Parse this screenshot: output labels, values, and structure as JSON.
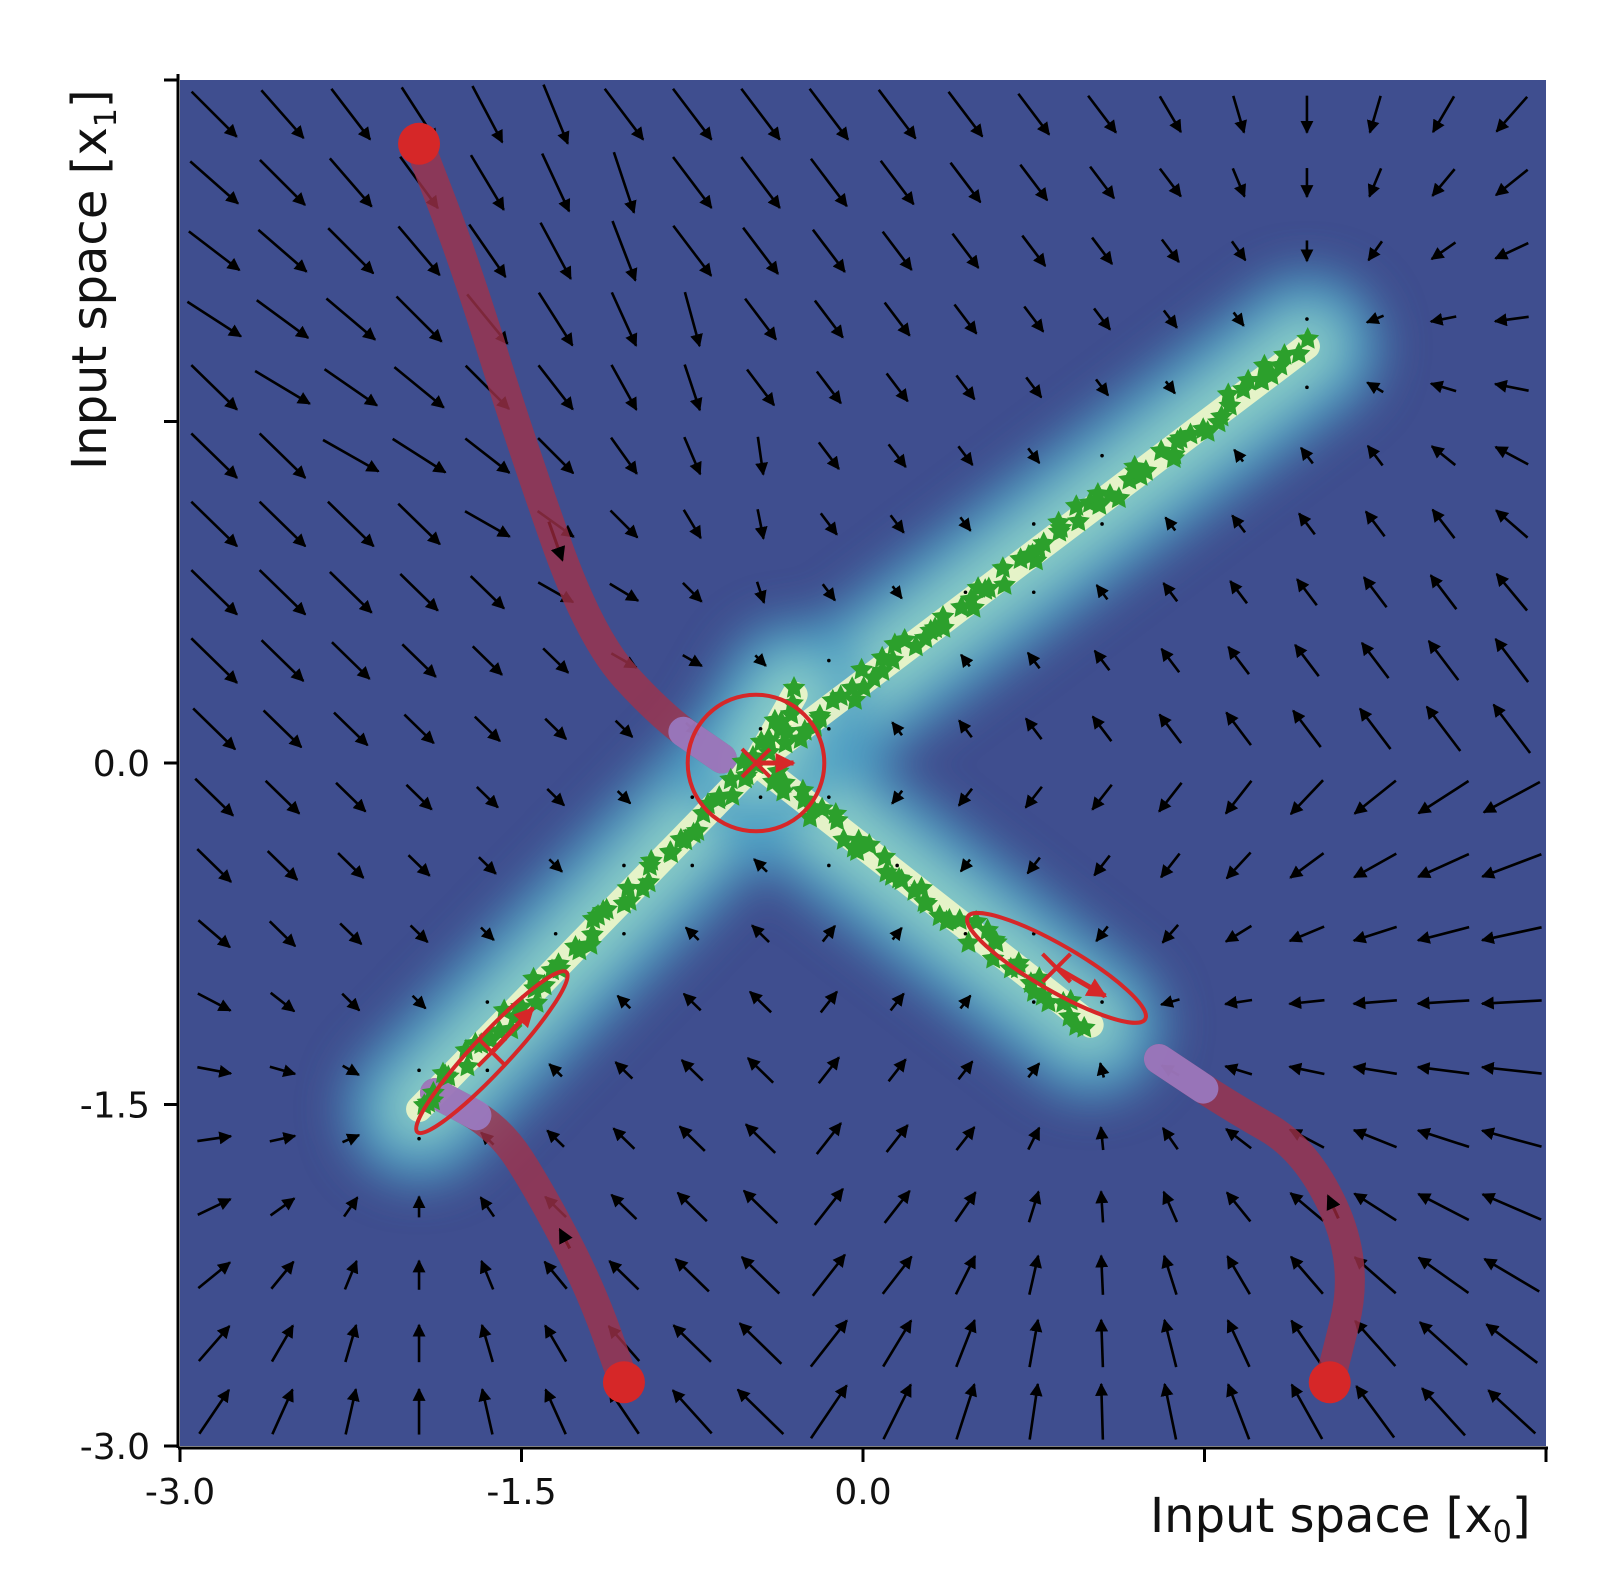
{
  "chart_data": {
    "type": "scatter",
    "title": "",
    "xlabel": "Input space [x",
    "xlabel_sub": "0",
    "xlabel_close": "]",
    "ylabel": "Input space [x",
    "ylabel_sub": "1",
    "ylabel_close": "]",
    "xlim": [
      -3.0,
      3.0
    ],
    "ylim": [
      -3.0,
      3.0
    ],
    "x_tick_labels": [
      "-3.0",
      "-1.5",
      "0.0"
    ],
    "y_tick_labels": [
      "-3.0",
      "-1.5",
      "0.0"
    ],
    "x_ticks": [
      -3.0,
      -1.5,
      0.0,
      1.5,
      3.0
    ],
    "y_ticks": [
      -3.0,
      -1.5,
      0.0,
      1.5,
      3.0
    ],
    "background": "density heatmap with vector field",
    "colors": {
      "heat_low": "#3b4a86",
      "heat_mid": "#4d9fc4",
      "heat_high": "#f7fbc8",
      "arrow": "#000000",
      "trajectory": "#a0324a",
      "trajectory_end": "#9b7fc9",
      "start_point": "#d62728",
      "data_points": "#2ca02c",
      "ellipse": "#d62728"
    },
    "start_points": [
      {
        "x": -1.95,
        "y": 2.72
      },
      {
        "x": -1.05,
        "y": -2.72
      },
      {
        "x": 2.05,
        "y": -2.72
      }
    ],
    "trajectories": [
      {
        "points": [
          [
            -1.95,
            2.72
          ],
          [
            -1.75,
            2.2
          ],
          [
            -1.5,
            1.4
          ],
          [
            -1.2,
            0.55
          ],
          [
            -0.88,
            0.2
          ],
          [
            -0.62,
            0.02
          ]
        ]
      },
      {
        "points": [
          [
            -1.05,
            -2.72
          ],
          [
            -1.2,
            -2.3
          ],
          [
            -1.42,
            -1.88
          ],
          [
            -1.6,
            -1.6
          ],
          [
            -1.88,
            -1.45
          ]
        ]
      },
      {
        "points": [
          [
            2.05,
            -2.72
          ],
          [
            2.18,
            -2.2
          ],
          [
            1.95,
            -1.7
          ],
          [
            1.6,
            -1.5
          ],
          [
            1.3,
            -1.3
          ]
        ]
      }
    ],
    "ellipses": [
      {
        "cx": -0.47,
        "cy": 0.0,
        "rx": 0.3,
        "ry": 0.3,
        "angle": 0
      },
      {
        "cx": -1.63,
        "cy": -1.27,
        "rx": 0.48,
        "ry": 0.08,
        "angle": 47
      },
      {
        "cx": 0.85,
        "cy": -0.9,
        "rx": 0.45,
        "ry": 0.1,
        "angle": -30
      }
    ],
    "data_arms": [
      {
        "from": [
          -0.47,
          0.0
        ],
        "to": [
          1.95,
          1.83
        ]
      },
      {
        "from": [
          -0.47,
          0.0
        ],
        "to": [
          -1.95,
          -1.52
        ]
      },
      {
        "from": [
          -0.47,
          0.0
        ],
        "to": [
          1.0,
          -1.15
        ]
      },
      {
        "from": [
          -0.47,
          0.0
        ],
        "to": [
          -0.3,
          0.3
        ]
      }
    ]
  }
}
